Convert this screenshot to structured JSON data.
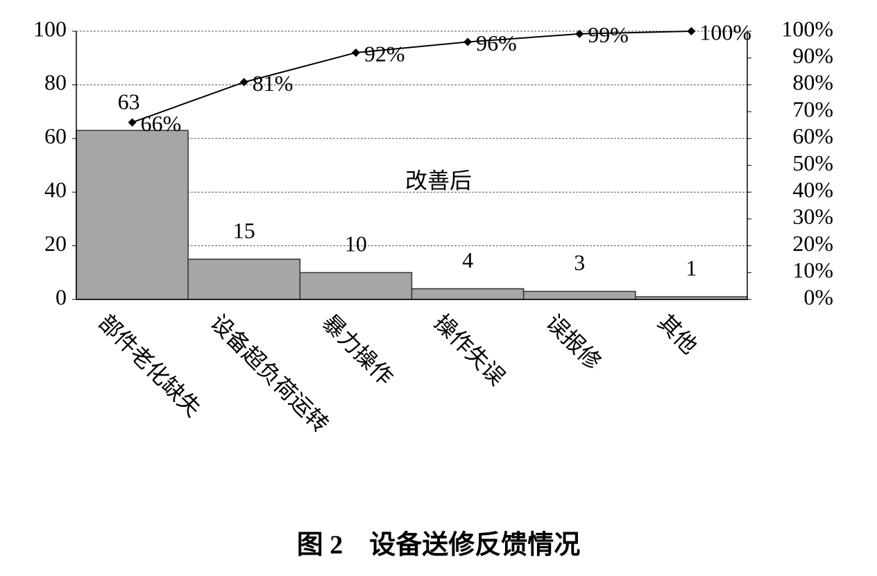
{
  "chart_data": {
    "type": "bar",
    "annotation": "改善后",
    "caption": "图 2　设备送修反馈情况",
    "categories": [
      "部件老化缺失",
      "设备超负荷运转",
      "暴力操作",
      "操作失误",
      "误报修",
      "其他"
    ],
    "series": [
      {
        "type": "bar",
        "color": "#a6a6a6",
        "values": [
          63,
          15,
          10,
          4,
          3,
          1
        ]
      },
      {
        "type": "line",
        "axis": "y2",
        "color": "#000000",
        "values": [
          66,
          81,
          92,
          96,
          99,
          100
        ],
        "value_labels": [
          "66%",
          "81%",
          "92%",
          "96%",
          "99%",
          "100%"
        ]
      }
    ],
    "ylim": [
      0,
      100
    ],
    "yticks": [
      0,
      20,
      40,
      60,
      80,
      100
    ],
    "y2lim": [
      0,
      100
    ],
    "y2ticks": [
      {
        "value": 0,
        "label": "0%"
      },
      {
        "value": 10,
        "label": "10%"
      },
      {
        "value": 20,
        "label": "20%"
      },
      {
        "value": 30,
        "label": "30%"
      },
      {
        "value": 40,
        "label": "40%"
      },
      {
        "value": 50,
        "label": "50%"
      },
      {
        "value": 60,
        "label": "60%"
      },
      {
        "value": 70,
        "label": "70%"
      },
      {
        "value": 80,
        "label": "80%"
      },
      {
        "value": 90,
        "label": "90%"
      },
      {
        "value": 100,
        "label": "100%"
      }
    ],
    "grid": true
  }
}
